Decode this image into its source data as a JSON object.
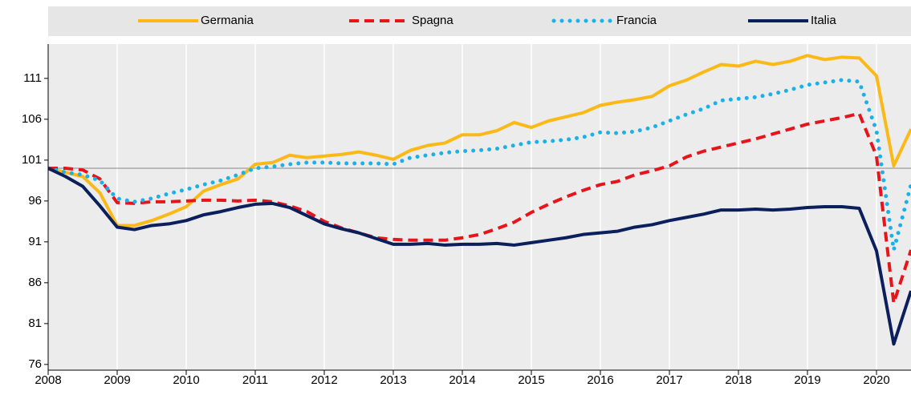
{
  "chart_data": {
    "type": "line",
    "legend": "top",
    "grid": true,
    "hline": 100,
    "x": [
      2008,
      2008.25,
      2008.5,
      2008.75,
      2009,
      2009.25,
      2009.5,
      2009.75,
      2010,
      2010.25,
      2010.5,
      2010.75,
      2011,
      2011.25,
      2011.5,
      2011.75,
      2012,
      2012.25,
      2012.5,
      2012.75,
      2013,
      2013.25,
      2013.5,
      2013.75,
      2014,
      2014.25,
      2014.5,
      2014.75,
      2015,
      2015.25,
      2015.5,
      2015.75,
      2016,
      2016.25,
      2016.5,
      2016.75,
      2017,
      2017.25,
      2017.5,
      2017.75,
      2018,
      2018.25,
      2018.5,
      2018.75,
      2019,
      2019.25,
      2019.5,
      2019.75,
      2020,
      2020.25,
      2020.5
    ],
    "xlim": [
      2008,
      2020.5
    ],
    "xticks": [
      2008,
      2009,
      2010,
      2011,
      2012,
      2013,
      2014,
      2015,
      2016,
      2017,
      2018,
      2019,
      2020
    ],
    "ylim": [
      75.3,
      115.2
    ],
    "yticks": [
      76,
      81,
      86,
      91,
      96,
      101,
      106,
      111
    ],
    "series": [
      {
        "name": "Germania",
        "color": "#fbb917",
        "style": "solid",
        "values": [
          100,
          99.5,
          99,
          97,
          93,
          93,
          93.6,
          94.4,
          95.3,
          97.2,
          98,
          98.7,
          100.5,
          100.7,
          101.6,
          101.3,
          101.5,
          101.7,
          102,
          101.6,
          101.1,
          102.2,
          102.8,
          103.1,
          104.1,
          104.1,
          104.6,
          105.6,
          105,
          105.8,
          106.3,
          106.8,
          107.7,
          108.1,
          108.4,
          108.8,
          110.1,
          110.8,
          111.8,
          112.7,
          112.5,
          113.1,
          112.7,
          113.1,
          113.8,
          113.3,
          113.6,
          113.5,
          111.3,
          100.3,
          104.8
        ]
      },
      {
        "name": "Spagna",
        "color": "#e8141c",
        "style": "dashed",
        "values": [
          100,
          100,
          99.8,
          98.7,
          95.8,
          95.7,
          95.9,
          95.9,
          96,
          96.1,
          96.1,
          96,
          96.1,
          95.9,
          95.4,
          94.7,
          93.5,
          92.7,
          92.1,
          91.5,
          91.3,
          91.2,
          91.2,
          91.2,
          91.5,
          91.9,
          92.6,
          93.4,
          94.6,
          95.6,
          96.5,
          97.3,
          98,
          98.4,
          99.2,
          99.7,
          100.3,
          101.4,
          102.1,
          102.6,
          103.1,
          103.6,
          104.2,
          104.8,
          105.4,
          105.8,
          106.2,
          106.7,
          101.5,
          83.5,
          90
        ]
      },
      {
        "name": "Francia",
        "color": "#1ab0e8",
        "style": "dotted",
        "values": [
          100,
          99.5,
          99.2,
          98.5,
          96.3,
          95.9,
          96.3,
          96.9,
          97.4,
          98,
          98.5,
          99.2,
          100,
          100.2,
          100.5,
          100.7,
          100.7,
          100.6,
          100.6,
          100.6,
          100.5,
          101.3,
          101.6,
          101.9,
          102.1,
          102.2,
          102.4,
          102.8,
          103.2,
          103.3,
          103.5,
          103.8,
          104.4,
          104.3,
          104.5,
          105,
          105.8,
          106.6,
          107.3,
          108.3,
          108.5,
          108.7,
          109.1,
          109.6,
          110.2,
          110.5,
          110.8,
          110.6,
          104.6,
          90,
          98
        ]
      },
      {
        "name": "Italia",
        "color": "#0a1f5c",
        "style": "solid",
        "values": [
          100,
          99,
          97.8,
          95.4,
          92.8,
          92.5,
          93,
          93.2,
          93.6,
          94.3,
          94.7,
          95.2,
          95.6,
          95.7,
          95.2,
          94.2,
          93.2,
          92.6,
          92.1,
          91.4,
          90.7,
          90.7,
          90.8,
          90.6,
          90.7,
          90.7,
          90.8,
          90.6,
          90.9,
          91.2,
          91.5,
          91.9,
          92.1,
          92.3,
          92.8,
          93.1,
          93.6,
          94,
          94.4,
          94.9,
          94.9,
          95,
          94.9,
          95,
          95.2,
          95.3,
          95.3,
          95.1,
          89.9,
          78.5,
          85
        ]
      }
    ]
  }
}
